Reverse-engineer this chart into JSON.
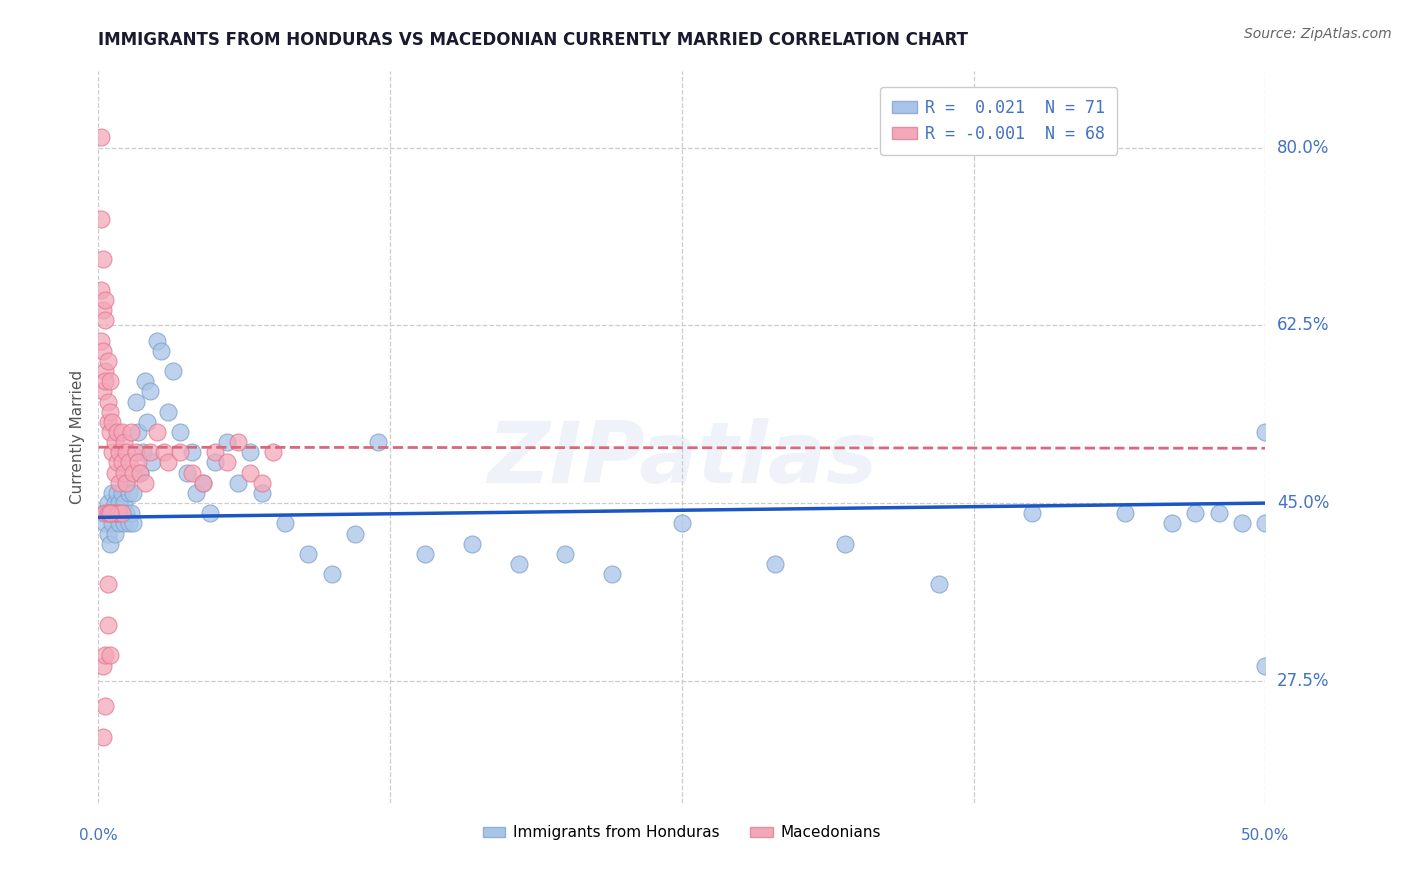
{
  "title": "IMMIGRANTS FROM HONDURAS VS MACEDONIAN CURRENTLY MARRIED CORRELATION CHART",
  "source": "Source: ZipAtlas.com",
  "ylabel": "Currently Married",
  "x_label_bottom_left": "0.0%",
  "x_label_bottom_right": "50.0%",
  "legend_blue_r": "R =  0.021",
  "legend_blue_n": "N = 71",
  "legend_pink_r": "R = -0.001",
  "legend_pink_n": "N = 68",
  "legend1": "Immigrants from Honduras",
  "legend2": "Macedonians",
  "xlim": [
    0.0,
    0.5
  ],
  "ylim": [
    0.155,
    0.875
  ],
  "yticks": [
    0.275,
    0.45,
    0.625,
    0.8
  ],
  "ytick_labels": [
    "27.5%",
    "45.0%",
    "62.5%",
    "80.0%"
  ],
  "axis_color": "#4472c4",
  "blue_dot_color": "#a8c4e8",
  "pink_dot_color": "#f4a7b9",
  "blue_line_color": "#1a56c4",
  "pink_line_color": "#d9687a",
  "watermark": "ZIPatlas",
  "blue_trend": [
    0.436,
    0.45
  ],
  "pink_trend": [
    0.505,
    0.504
  ],
  "blue_points_x": [
    0.002,
    0.003,
    0.004,
    0.004,
    0.005,
    0.005,
    0.006,
    0.006,
    0.007,
    0.007,
    0.008,
    0.008,
    0.009,
    0.009,
    0.01,
    0.01,
    0.011,
    0.011,
    0.012,
    0.012,
    0.013,
    0.013,
    0.014,
    0.015,
    0.015,
    0.016,
    0.017,
    0.018,
    0.019,
    0.02,
    0.021,
    0.022,
    0.023,
    0.025,
    0.027,
    0.03,
    0.032,
    0.035,
    0.038,
    0.04,
    0.042,
    0.045,
    0.048,
    0.05,
    0.055,
    0.06,
    0.065,
    0.07,
    0.08,
    0.09,
    0.1,
    0.11,
    0.12,
    0.14,
    0.16,
    0.18,
    0.2,
    0.22,
    0.25,
    0.29,
    0.32,
    0.36,
    0.4,
    0.44,
    0.46,
    0.47,
    0.48,
    0.49,
    0.5,
    0.5,
    0.5
  ],
  "blue_points_y": [
    0.44,
    0.43,
    0.42,
    0.45,
    0.41,
    0.44,
    0.43,
    0.46,
    0.42,
    0.45,
    0.44,
    0.46,
    0.43,
    0.45,
    0.44,
    0.46,
    0.43,
    0.45,
    0.44,
    0.47,
    0.43,
    0.46,
    0.44,
    0.43,
    0.46,
    0.55,
    0.52,
    0.48,
    0.5,
    0.57,
    0.53,
    0.56,
    0.49,
    0.61,
    0.6,
    0.54,
    0.58,
    0.52,
    0.48,
    0.5,
    0.46,
    0.47,
    0.44,
    0.49,
    0.51,
    0.47,
    0.5,
    0.46,
    0.43,
    0.4,
    0.38,
    0.42,
    0.51,
    0.4,
    0.41,
    0.39,
    0.4,
    0.38,
    0.43,
    0.39,
    0.41,
    0.37,
    0.44,
    0.44,
    0.43,
    0.44,
    0.44,
    0.43,
    0.29,
    0.52,
    0.43
  ],
  "pink_points_x": [
    0.001,
    0.001,
    0.001,
    0.001,
    0.002,
    0.002,
    0.002,
    0.002,
    0.003,
    0.003,
    0.003,
    0.003,
    0.004,
    0.004,
    0.004,
    0.005,
    0.005,
    0.005,
    0.006,
    0.006,
    0.007,
    0.007,
    0.008,
    0.008,
    0.009,
    0.009,
    0.01,
    0.01,
    0.011,
    0.011,
    0.012,
    0.012,
    0.013,
    0.014,
    0.015,
    0.016,
    0.017,
    0.018,
    0.02,
    0.022,
    0.025,
    0.028,
    0.03,
    0.035,
    0.04,
    0.045,
    0.05,
    0.055,
    0.06,
    0.065,
    0.07,
    0.075,
    0.003,
    0.004,
    0.005,
    0.006,
    0.007,
    0.008,
    0.009,
    0.01,
    0.002,
    0.002,
    0.003,
    0.003,
    0.004,
    0.004,
    0.005,
    0.005
  ],
  "pink_points_y": [
    0.81,
    0.73,
    0.66,
    0.61,
    0.69,
    0.64,
    0.6,
    0.56,
    0.58,
    0.63,
    0.65,
    0.57,
    0.55,
    0.59,
    0.53,
    0.52,
    0.57,
    0.54,
    0.5,
    0.53,
    0.48,
    0.51,
    0.49,
    0.52,
    0.47,
    0.5,
    0.49,
    0.52,
    0.48,
    0.51,
    0.47,
    0.5,
    0.49,
    0.52,
    0.48,
    0.5,
    0.49,
    0.48,
    0.47,
    0.5,
    0.52,
    0.5,
    0.49,
    0.5,
    0.48,
    0.47,
    0.5,
    0.49,
    0.51,
    0.48,
    0.47,
    0.5,
    0.44,
    0.44,
    0.44,
    0.44,
    0.44,
    0.44,
    0.44,
    0.44,
    0.29,
    0.22,
    0.25,
    0.3,
    0.33,
    0.37,
    0.44,
    0.3
  ]
}
